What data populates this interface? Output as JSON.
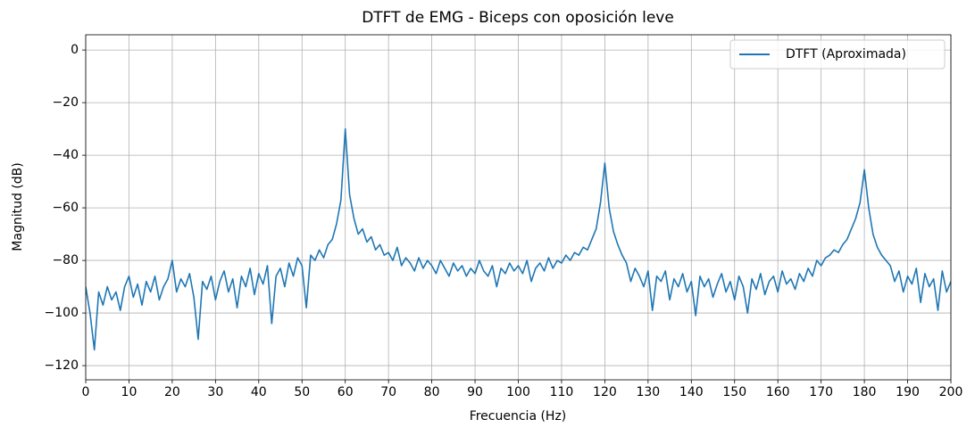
{
  "chart_data": {
    "type": "line",
    "title": "DTFT de EMG - Biceps con oposición leve",
    "xlabel": "Frecuencia (Hz)",
    "ylabel": "Magnitud (dB)",
    "xlim": [
      0,
      200
    ],
    "ylim": [
      -125.4,
      5.8
    ],
    "xticks": [
      0,
      10,
      20,
      30,
      40,
      50,
      60,
      70,
      80,
      90,
      100,
      110,
      120,
      130,
      140,
      150,
      160,
      170,
      180,
      190,
      200
    ],
    "yticks": [
      {
        "value": -120,
        "label": "−120"
      },
      {
        "value": -100,
        "label": "−100"
      },
      {
        "value": -80,
        "label": "−80"
      },
      {
        "value": -60,
        "label": "−60"
      },
      {
        "value": -40,
        "label": "−40"
      },
      {
        "value": -20,
        "label": "−20"
      },
      0
    ],
    "grid": true,
    "legend": "upper right",
    "x": [
      0,
      1,
      2,
      3,
      4,
      5,
      6,
      7,
      8,
      9,
      10,
      11,
      12,
      13,
      14,
      15,
      16,
      17,
      18,
      19,
      20,
      21,
      22,
      23,
      24,
      25,
      26,
      27,
      28,
      29,
      30,
      31,
      32,
      33,
      34,
      35,
      36,
      37,
      38,
      39,
      40,
      41,
      42,
      43,
      44,
      45,
      46,
      47,
      48,
      49,
      50,
      51,
      52,
      53,
      54,
      55,
      56,
      57,
      58,
      59,
      60,
      61,
      62,
      63,
      64,
      65,
      66,
      67,
      68,
      69,
      70,
      71,
      72,
      73,
      74,
      75,
      76,
      77,
      78,
      79,
      80,
      81,
      82,
      83,
      84,
      85,
      86,
      87,
      88,
      89,
      90,
      91,
      92,
      93,
      94,
      95,
      96,
      97,
      98,
      99,
      100,
      101,
      102,
      103,
      104,
      105,
      106,
      107,
      108,
      109,
      110,
      111,
      112,
      113,
      114,
      115,
      116,
      117,
      118,
      119,
      120,
      121,
      122,
      123,
      124,
      125,
      126,
      127,
      128,
      129,
      130,
      131,
      132,
      133,
      134,
      135,
      136,
      137,
      138,
      139,
      140,
      141,
      142,
      143,
      144,
      145,
      146,
      147,
      148,
      149,
      150,
      151,
      152,
      153,
      154,
      155,
      156,
      157,
      158,
      159,
      160,
      161,
      162,
      163,
      164,
      165,
      166,
      167,
      168,
      169,
      170,
      171,
      172,
      173,
      174,
      175,
      176,
      177,
      178,
      179,
      180,
      181,
      182,
      183,
      184,
      185,
      186,
      187,
      188,
      189,
      190,
      191,
      192,
      193,
      194,
      195,
      196,
      197,
      198,
      199,
      200
    ],
    "series": [
      {
        "name": "DTFT (Aproximada)",
        "color": "#1f77b4",
        "values": [
          -90,
          -100,
          -114,
          -92,
          -97,
          -90,
          -95,
          -92,
          -99,
          -90,
          -86,
          -94,
          -89,
          -97,
          -88,
          -92,
          -86,
          -95,
          -90,
          -87,
          -80,
          -92,
          -87,
          -90,
          -85,
          -94,
          -110,
          -88,
          -91,
          -86,
          -95,
          -88,
          -84,
          -92,
          -87,
          -98,
          -86,
          -90,
          -83,
          -93,
          -85,
          -89,
          -82,
          -104,
          -86,
          -83,
          -90,
          -81,
          -86,
          -79,
          -82,
          -98,
          -78,
          -80,
          -76,
          -79,
          -74,
          -72,
          -66,
          -57,
          -30,
          -55,
          -64,
          -70,
          -68,
          -73,
          -71,
          -76,
          -74,
          -78,
          -77,
          -80,
          -75,
          -82,
          -79,
          -81,
          -84,
          -79,
          -83,
          -80,
          -82,
          -85,
          -80,
          -83,
          -86,
          -81,
          -84,
          -82,
          -86,
          -83,
          -85,
          -80,
          -84,
          -86,
          -82,
          -90,
          -83,
          -85,
          -81,
          -84,
          -82,
          -85,
          -80,
          -88,
          -83,
          -81,
          -84,
          -79,
          -83,
          -80,
          -81,
          -78,
          -80,
          -77,
          -78,
          -75,
          -76,
          -72,
          -68,
          -58,
          -43,
          -60,
          -69,
          -74,
          -78,
          -81,
          -88,
          -83,
          -86,
          -90,
          -84,
          -99,
          -86,
          -88,
          -84,
          -95,
          -87,
          -90,
          -85,
          -92,
          -88,
          -101,
          -86,
          -90,
          -87,
          -94,
          -89,
          -85,
          -92,
          -88,
          -95,
          -86,
          -90,
          -100,
          -87,
          -91,
          -85,
          -93,
          -88,
          -86,
          -92,
          -84,
          -89,
          -87,
          -91,
          -85,
          -88,
          -83,
          -86,
          -80,
          -82,
          -79,
          -78,
          -76,
          -77,
          -74,
          -72,
          -68,
          -64,
          -58,
          -45.5,
          -60,
          -70,
          -75,
          -78,
          -80,
          -82,
          -88,
          -84,
          -92,
          -86,
          -89,
          -83,
          -96,
          -85,
          -90,
          -87,
          -99,
          -84,
          -92,
          -88
        ]
      }
    ]
  }
}
